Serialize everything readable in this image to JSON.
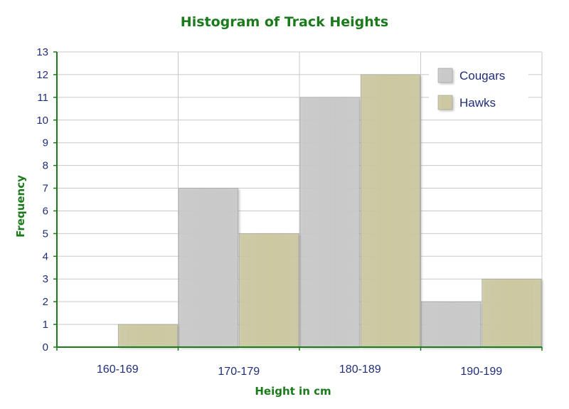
{
  "chart_data": {
    "type": "bar",
    "title": "Histogram of Track Heights",
    "xlabel": "Height in cm",
    "ylabel": "Frequency",
    "categories": [
      "160-169",
      "170-179",
      "180-189",
      "190-199"
    ],
    "series": [
      {
        "name": "Cougars",
        "values": [
          0,
          7,
          11,
          2
        ],
        "color": "#c9c9c9"
      },
      {
        "name": "Hawks",
        "values": [
          1,
          5,
          12,
          3
        ],
        "color": "#ccc8a0"
      }
    ],
    "ylim": [
      0,
      13
    ],
    "yticks": [
      0,
      1,
      2,
      3,
      4,
      5,
      6,
      7,
      8,
      9,
      10,
      11,
      12,
      13
    ],
    "grid": true,
    "legend": "top-right",
    "colors": {
      "axis": "#1b7a1b",
      "text": "#1f2d7a"
    }
  }
}
